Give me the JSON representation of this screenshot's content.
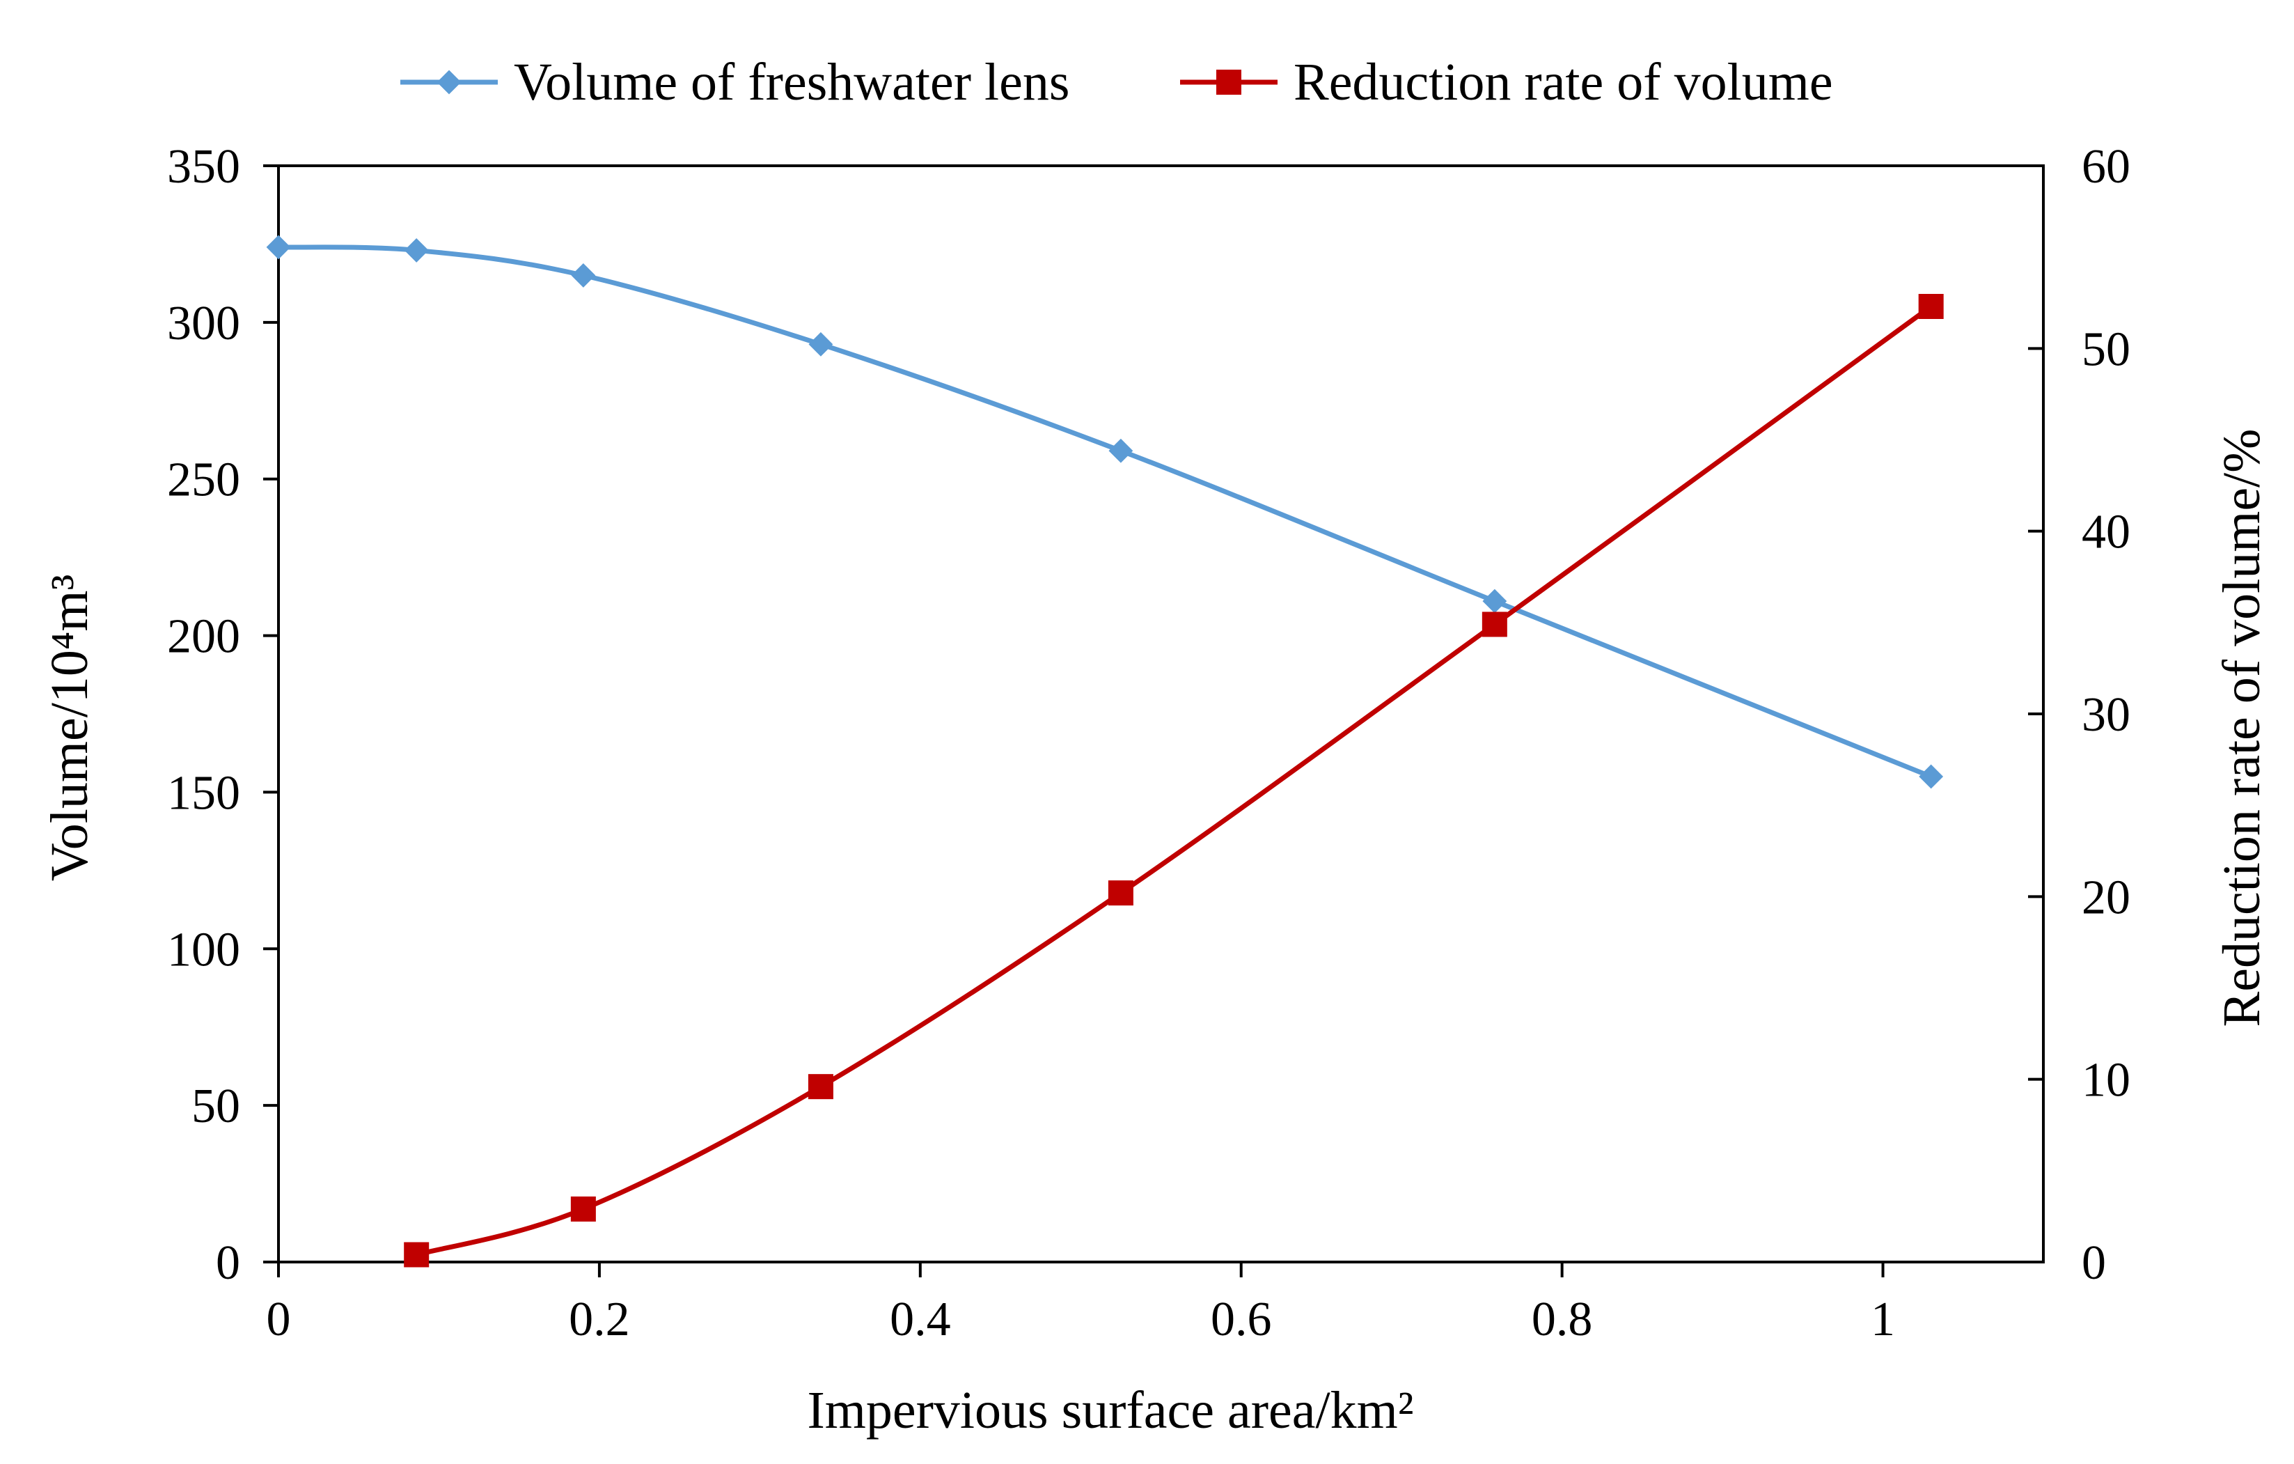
{
  "chart_data": {
    "type": "line",
    "title": "",
    "xlabel": "Impervious surface area/km²",
    "ylabel": "Volume/10⁴m³",
    "y2label": "Reduction rate of volume/%",
    "xlim": [
      0,
      1.1
    ],
    "ylim": [
      0,
      350
    ],
    "y2lim": [
      0,
      60
    ],
    "x_ticks": [
      "0",
      "0.2",
      "0.4",
      "0.6",
      "0.8",
      "1"
    ],
    "y_ticks": [
      "0",
      "50",
      "100",
      "150",
      "200",
      "250",
      "300",
      "350"
    ],
    "y2_ticks": [
      "0",
      "10",
      "20",
      "30",
      "40",
      "50",
      "60"
    ],
    "legend_position": "top-center",
    "grid": false,
    "series": [
      {
        "name": "Volume of freshwater lens",
        "axis": "left",
        "color": "#5B9BD5",
        "marker": "diamond",
        "x": [
          0,
          0.086,
          0.19,
          0.338,
          0.525,
          0.758,
          1.03
        ],
        "values": [
          324,
          323,
          315,
          293,
          259,
          211,
          155
        ]
      },
      {
        "name": "Reduction rate of volume",
        "axis": "right",
        "color": "#C00000",
        "marker": "square",
        "x": [
          0.086,
          0.19,
          0.338,
          0.525,
          0.758,
          1.03
        ],
        "values": [
          0.4,
          2.9,
          9.6,
          20.2,
          34.9,
          52.3
        ]
      }
    ]
  }
}
